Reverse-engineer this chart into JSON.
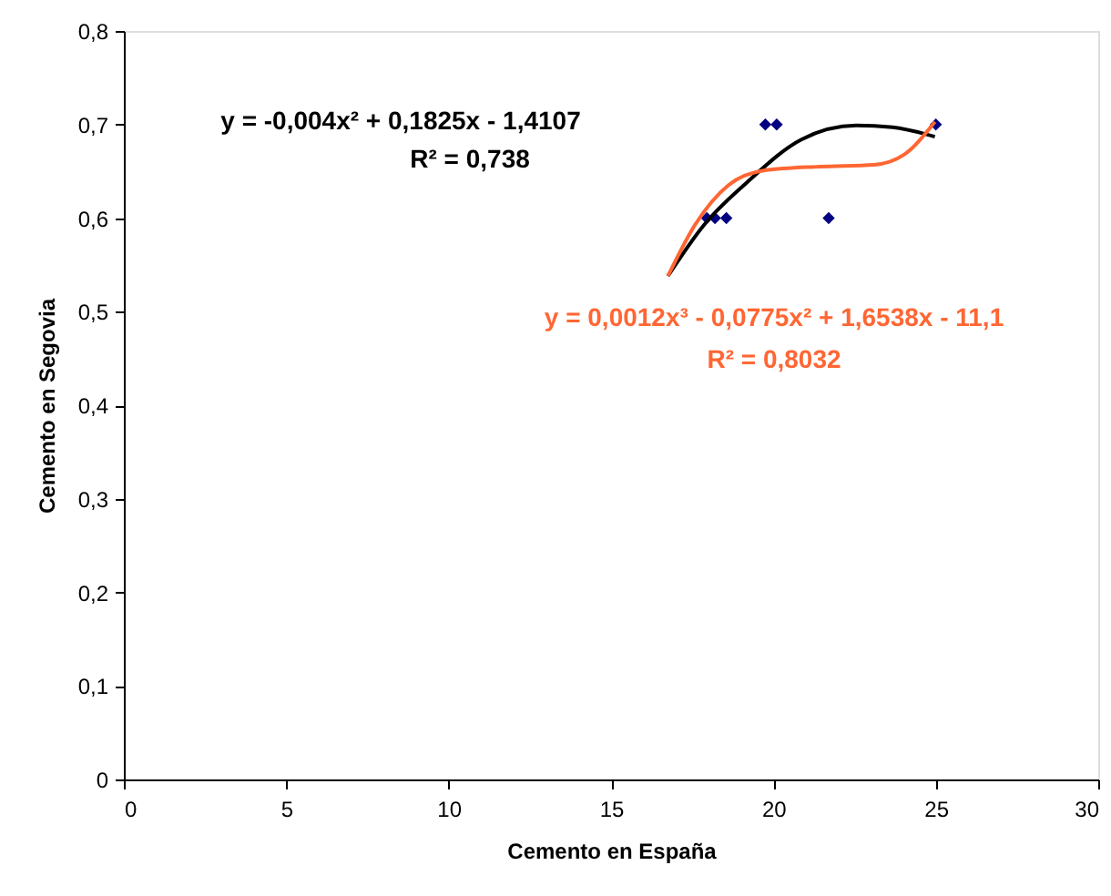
{
  "chart_data": {
    "type": "scatter",
    "xlabel": "Cemento en España",
    "ylabel": "Cemento en Segovia",
    "xlim": [
      0,
      30
    ],
    "xticks": [
      0,
      5,
      10,
      15,
      20,
      25,
      30
    ],
    "ylim": [
      0,
      0.8
    ],
    "yticks": [
      {
        "value": 0,
        "label": "0"
      },
      {
        "value": 0.1,
        "label": "0,1"
      },
      {
        "value": 0.2,
        "label": "0,2"
      },
      {
        "value": 0.3,
        "label": "0,3"
      },
      {
        "value": 0.4,
        "label": "0,4"
      },
      {
        "value": 0.5,
        "label": "0,5"
      },
      {
        "value": 0.6,
        "label": "0,6"
      },
      {
        "value": 0.7,
        "label": "0,7"
      },
      {
        "value": 0.8,
        "label": "0,8"
      }
    ],
    "grid": false,
    "marker": "diamond",
    "series": [
      {
        "color": "#000080",
        "x": [
          17.95,
          18.2,
          18.55,
          19.75,
          20.1,
          21.7,
          25.0
        ],
        "values": [
          0.6,
          0.6,
          0.6,
          0.7,
          0.7,
          0.6,
          0.7
        ]
      },
      {
        "type": "line",
        "color": "#000000",
        "marker": "none",
        "x": [
          16.75,
          17.87,
          19.18,
          20.86,
          22.55,
          23.67,
          24.97
        ],
        "values": [
          0.538,
          0.593,
          0.638,
          0.684,
          0.699,
          0.697,
          0.687
        ]
      },
      {
        "type": "line",
        "color": "#ff6633",
        "marker": "none",
        "x": [
          16.75,
          17.59,
          18.61,
          19.74,
          21.42,
          23.1,
          24.03,
          24.97
        ],
        "values": [
          0.538,
          0.593,
          0.635,
          0.651,
          0.655,
          0.657,
          0.668,
          0.703
        ]
      }
    ],
    "annotations": [
      "y = -0,004x² + 0,1825x - 1,4107",
      "R² = 0,738",
      "y = 0,0012x³ - 0,0775x² + 1,6538x - 11,1",
      "R² = 0,8032"
    ]
  }
}
